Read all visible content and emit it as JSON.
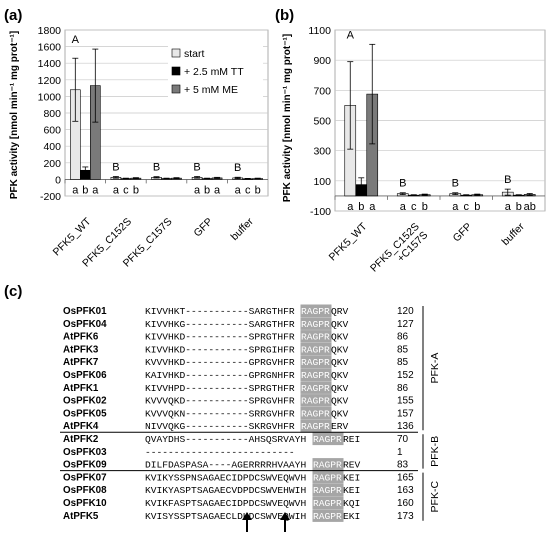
{
  "panel_labels": [
    "(a)",
    "(b)",
    "(c)"
  ],
  "chart_data": [
    {
      "type": "bar",
      "panel": "(a)",
      "ylabel": "PFK activity [nmol min⁻¹ mg prot⁻¹]",
      "ylim": [
        -200,
        1800
      ],
      "yticks": [
        "-200",
        "0",
        "200",
        "400",
        "600",
        "800",
        "1000",
        "1200",
        "1400",
        "1600",
        "1800"
      ],
      "grid": true,
      "legend_position": "top-right",
      "categories": [
        "PFK5_WT",
        "PFK5_C152S",
        "PFK5_C157S",
        "GFP",
        "buffer"
      ],
      "group_letters": [
        "A",
        "B",
        "B",
        "B",
        "B"
      ],
      "series": [
        {
          "name": "start",
          "color": "#e8e8e8",
          "values": [
            1080,
            25,
            25,
            25,
            18
          ],
          "errors": [
            380,
            10,
            8,
            10,
            8
          ],
          "letters": [
            "a",
            "a",
            "",
            "a",
            "a"
          ]
        },
        {
          "name": "+ 2.5 mM TT",
          "color": "#000000",
          "values": [
            110,
            10,
            10,
            10,
            8
          ],
          "errors": [
            40,
            5,
            5,
            5,
            4
          ],
          "letters": [
            "b",
            "c",
            "",
            "b",
            "c"
          ]
        },
        {
          "name": "+ 5 mM ME",
          "color": "#7a7a7a",
          "values": [
            1130,
            15,
            15,
            18,
            10
          ],
          "errors": [
            440,
            6,
            6,
            7,
            5
          ],
          "letters": [
            "a",
            "b",
            "",
            "a",
            "b"
          ]
        }
      ]
    },
    {
      "type": "bar",
      "panel": "(b)",
      "ylabel": "PFK activity [nmol min⁻¹ mg prot⁻¹]",
      "ylim": [
        -100,
        1100
      ],
      "yticks": [
        "-100",
        "100",
        "300",
        "500",
        "700",
        "900",
        "1100"
      ],
      "grid": true,
      "categories": [
        "PFK5_WT",
        "PFK5_C152S\n+C157S",
        "GFP",
        "buffer"
      ],
      "group_letters": [
        "A",
        "B",
        "B",
        "B"
      ],
      "series": [
        {
          "name": "start",
          "color": "#e8e8e8",
          "values": [
            600,
            15,
            15,
            25
          ],
          "errors": [
            290,
            6,
            6,
            20
          ],
          "letters": [
            "a",
            "a",
            "a",
            "a"
          ]
        },
        {
          "name": "+ 2.5 mM TT",
          "color": "#000000",
          "values": [
            75,
            5,
            5,
            5
          ],
          "errors": [
            45,
            3,
            3,
            3
          ],
          "letters": [
            "b",
            "c",
            "c",
            "b"
          ]
        },
        {
          "name": "+ 5 mM ME",
          "color": "#7a7a7a",
          "values": [
            675,
            8,
            8,
            10
          ],
          "errors": [
            330,
            4,
            4,
            6
          ],
          "letters": [
            "a",
            "b",
            "b",
            "ab"
          ]
        }
      ]
    }
  ],
  "alignment": {
    "rows": [
      {
        "name": "OsPFK01",
        "seq": "KIVVHKT-----------SARGTHFR",
        "motif": "RAGPR",
        "tail": "QRV",
        "num": "120",
        "group": "A"
      },
      {
        "name": "OsPFK04",
        "seq": "KIVVHKG-----------SARGTHFR",
        "motif": "RAGPR",
        "tail": "QKV",
        "num": "127",
        "group": "A"
      },
      {
        "name": "AtPFK6",
        "seq": "KIVVHKD-----------SPRGTHFR",
        "motif": "RAGPR",
        "tail": "QKV",
        "num": "86",
        "group": "A"
      },
      {
        "name": "AtPFK3",
        "seq": "KIVVHKD-----------SPRGIHFR",
        "motif": "RAGPR",
        "tail": "QKV",
        "num": "85",
        "group": "A"
      },
      {
        "name": "AtPFK7",
        "seq": "KVVVHKD-----------GPRGVHFR",
        "motif": "RAGPR",
        "tail": "QKV",
        "num": "85",
        "group": "A"
      },
      {
        "name": "OsPFK06",
        "seq": "KAIVHKD-----------GPRGNHFR",
        "motif": "RAGPR",
        "tail": "QKV",
        "num": "152",
        "group": "A"
      },
      {
        "name": "AtPFK1",
        "seq": "KIVVHPD-----------SPRGTHFR",
        "motif": "RAGPR",
        "tail": "QKV",
        "num": "86",
        "group": "A"
      },
      {
        "name": "OsPFK02",
        "seq": "KVVVQKD-----------SPRGVHFR",
        "motif": "RAGPR",
        "tail": "QKV",
        "num": "155",
        "group": "A"
      },
      {
        "name": "OsPFK05",
        "seq": "KVVVQKN-----------SRRGVHFR",
        "motif": "RAGPR",
        "tail": "QKV",
        "num": "157",
        "group": "A"
      },
      {
        "name": "AtPFK4",
        "seq": "NIVVQKG-----------SKRGVHFR",
        "motif": "RAGPR",
        "tail": "ERV",
        "num": "136",
        "group": "A"
      },
      {
        "name": "AtPFK2",
        "seq": "QVAYDHS-----------AHSQSRVAYH",
        "motif": "RAGPR",
        "tail": "REI",
        "num": "70",
        "group": "B"
      },
      {
        "name": "OsPFK03",
        "seq": "--------------------------",
        "motif": "",
        "tail": "",
        "num": "1",
        "group": "B"
      },
      {
        "name": "OsPFK09",
        "seq": "DILFDASPASA----AGERRRRHVAAYH",
        "motif": "RAGPR",
        "tail": "REV",
        "num": "83",
        "group": "B"
      },
      {
        "name": "OsPFK07",
        "seq": "KVIKYSSPNSAGAECIDPDCSWVEQWVH",
        "motif": "RAGPR",
        "tail": "KEI",
        "num": "165",
        "group": "C"
      },
      {
        "name": "OsPFK08",
        "seq": "KVIKYASPTSAGAECVDPDCSWVEHWIH",
        "motif": "RAGPR",
        "tail": "KEI",
        "num": "163",
        "group": "C"
      },
      {
        "name": "OsPFK10",
        "seq": "KVIKFASPTSAGAECIDPDCSWVEQWVH",
        "motif": "RAGPR",
        "tail": "KQI",
        "num": "160",
        "group": "C"
      },
      {
        "name": "AtPFK5",
        "seq": "KVISYSSPTSAGAECLDHDCSWVEQWIH",
        "motif": "RAGPR",
        "tail": "EKI",
        "num": "173",
        "group": "C"
      }
    ],
    "groups": {
      "A": "PFK-A",
      "B": "PFK-B",
      "C": "PFK-C"
    },
    "motif_color": "#a6a6a6"
  }
}
